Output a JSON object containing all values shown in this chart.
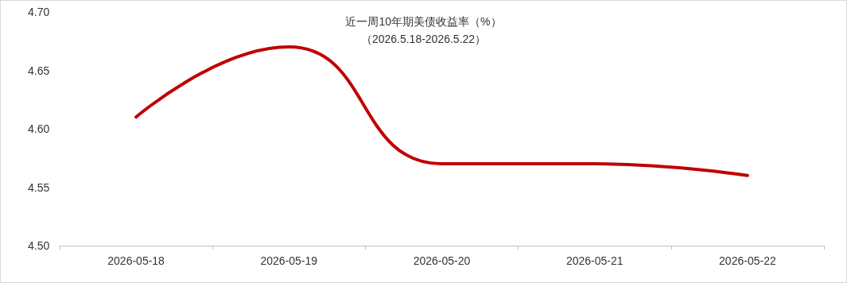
{
  "chart_data": {
    "type": "line",
    "title": "近一周10年期美债收益率（%）",
    "subtitle": "（2026.5.18-2026.5.22）",
    "categories": [
      "2026-05-18",
      "2026-05-19",
      "2026-05-20",
      "2026-05-21",
      "2026-05-22"
    ],
    "series": [
      {
        "color": "#c00000",
        "values": [
          4.61,
          4.67,
          4.57,
          4.57,
          4.56
        ]
      }
    ],
    "ylim": [
      4.5,
      4.7
    ],
    "yticks": [
      {
        "value": 4.5,
        "label": "4.50"
      },
      {
        "value": 4.55,
        "label": "4.55"
      },
      {
        "value": 4.6,
        "label": "4.60"
      },
      {
        "value": 4.65,
        "label": "4.65"
      },
      {
        "value": 4.7,
        "label": "4.70"
      }
    ],
    "grid": false,
    "marker": "none",
    "line_style": "solid"
  }
}
